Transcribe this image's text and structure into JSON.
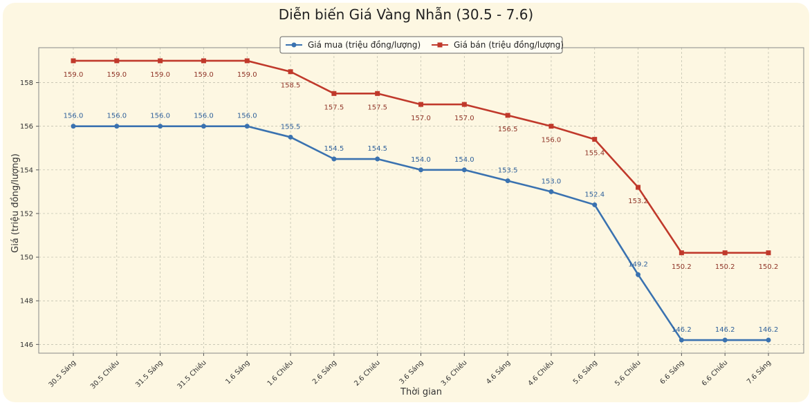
{
  "chart_data": {
    "type": "line",
    "title": "Diễn biến Giá Vàng Nhẫn (30.5 - 7.6)",
    "xlabel": "Thời gian",
    "ylabel": "Giá (triệu đồng/lượng)",
    "categories": [
      "30.5 Sáng",
      "30.5 Chiều",
      "31.5 Sáng",
      "31.5 Chiều",
      "1.6 Sáng",
      "1.6 Chiều",
      "2.6 Sáng",
      "2.6 Chiều",
      "3.6 Sáng",
      "3.6 Chiều",
      "4.6 Sáng",
      "4.6 Chiều",
      "5.6 Sáng",
      "5.6 Chiều",
      "6.6 Sáng",
      "6.6 Chiều",
      "7.6 Sáng"
    ],
    "ylim": [
      145.6,
      159.6
    ],
    "yticks": [
      146,
      148,
      150,
      152,
      154,
      156,
      158
    ],
    "grid": true,
    "legend_position": "top-center",
    "series": [
      {
        "name": "Giá mua (triệu đồng/lượng)",
        "color": "#3a72b0",
        "marker": "circle",
        "label_position": "above",
        "values": [
          156.0,
          156.0,
          156.0,
          156.0,
          156.0,
          155.5,
          154.5,
          154.5,
          154.0,
          154.0,
          153.5,
          153.0,
          152.4,
          149.2,
          146.2,
          146.2,
          146.2
        ]
      },
      {
        "name": "Giá bán (triệu đồng/lượng)",
        "color": "#c0392b",
        "marker": "square",
        "label_position": "below",
        "values": [
          159.0,
          159.0,
          159.0,
          159.0,
          159.0,
          158.5,
          157.5,
          157.5,
          157.0,
          157.0,
          156.5,
          156.0,
          155.4,
          153.2,
          150.2,
          150.2,
          150.2
        ]
      }
    ]
  }
}
